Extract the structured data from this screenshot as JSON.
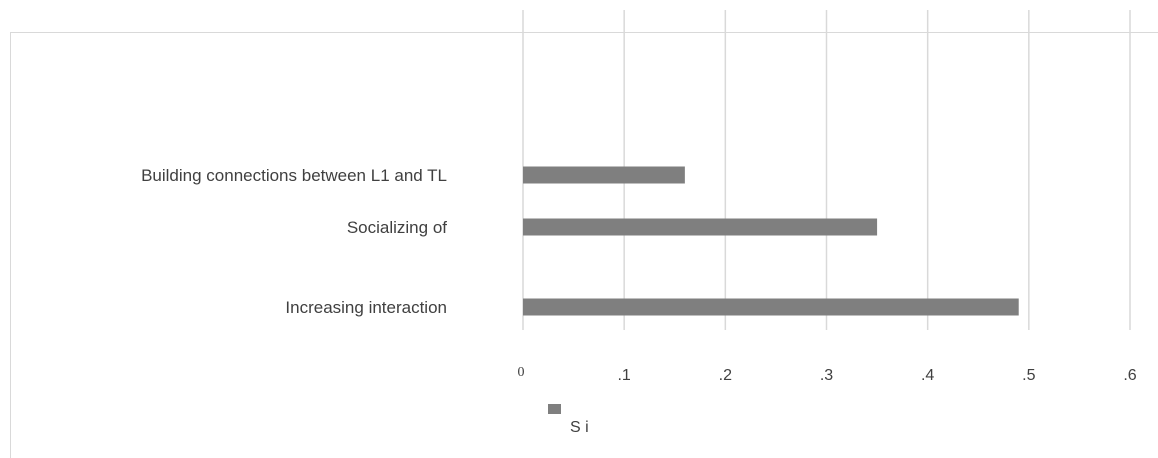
{
  "chart_data": {
    "type": "bar",
    "orientation": "horizontal",
    "categories": [
      "Building connections between L1 and TL",
      "Socializing of",
      "Increasing interaction"
    ],
    "series": [
      {
        "values": [
          0.16,
          0.35,
          0.49
        ]
      }
    ],
    "xlim": [
      0,
      0.6
    ],
    "xticks": [
      "0",
      ".1",
      ".2",
      ".3",
      ".4",
      ".5",
      ".6"
    ],
    "grid": true,
    "legend_position": "bottom",
    "legend_label": "S  i",
    "colors": {
      "bar": "#7f7f7f",
      "grid": "#d9d9d9",
      "text": "#404040"
    }
  }
}
